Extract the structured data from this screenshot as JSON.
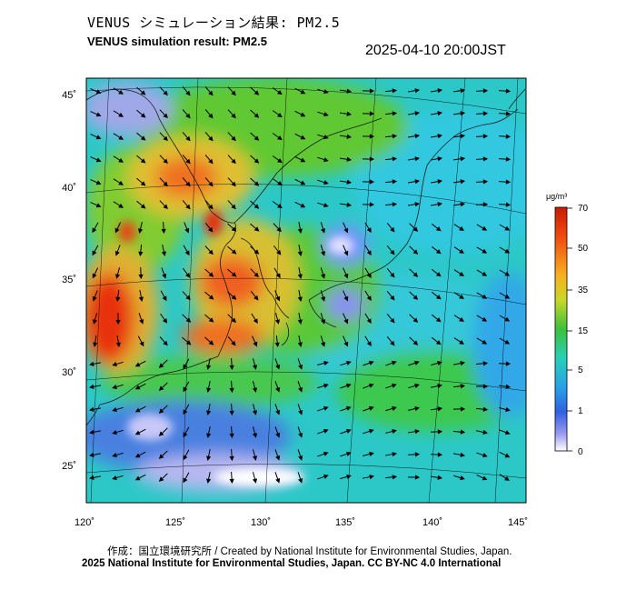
{
  "header": {
    "title_jp": "VENUS シミュレーション結果: PM2.5",
    "title_en": "VENUS simulation result: PM2.5",
    "timestamp": "2025-04-10 20:00JST"
  },
  "map": {
    "lon_ticks": [
      "120˚",
      "125˚",
      "130˚",
      "135˚",
      "140˚",
      "145˚"
    ],
    "lat_ticks": [
      "45˚",
      "40˚",
      "35˚",
      "30˚",
      "25˚"
    ],
    "lon_range": [
      120,
      145
    ],
    "lat_range": [
      23,
      46
    ]
  },
  "colorbar": {
    "unit": "μg/m³",
    "ticks": [
      "70",
      "50",
      "35",
      "15",
      "5",
      "1",
      "0"
    ],
    "colors": [
      "#d81e05",
      "#f05a14",
      "#f5a623",
      "#b8d12c",
      "#3cbf3c",
      "#2ad4b0",
      "#28a8e0",
      "#2a5ad8",
      "#8a8ae8",
      "#ffffff"
    ]
  },
  "footer": {
    "credit_line1": "作成：国立環境研究所 / Created by National Institute for Environmental Studies, Japan.",
    "credit_line2": "2025 National Institute for Environmental Studies, Japan. CC BY-NC 4.0 International"
  }
}
